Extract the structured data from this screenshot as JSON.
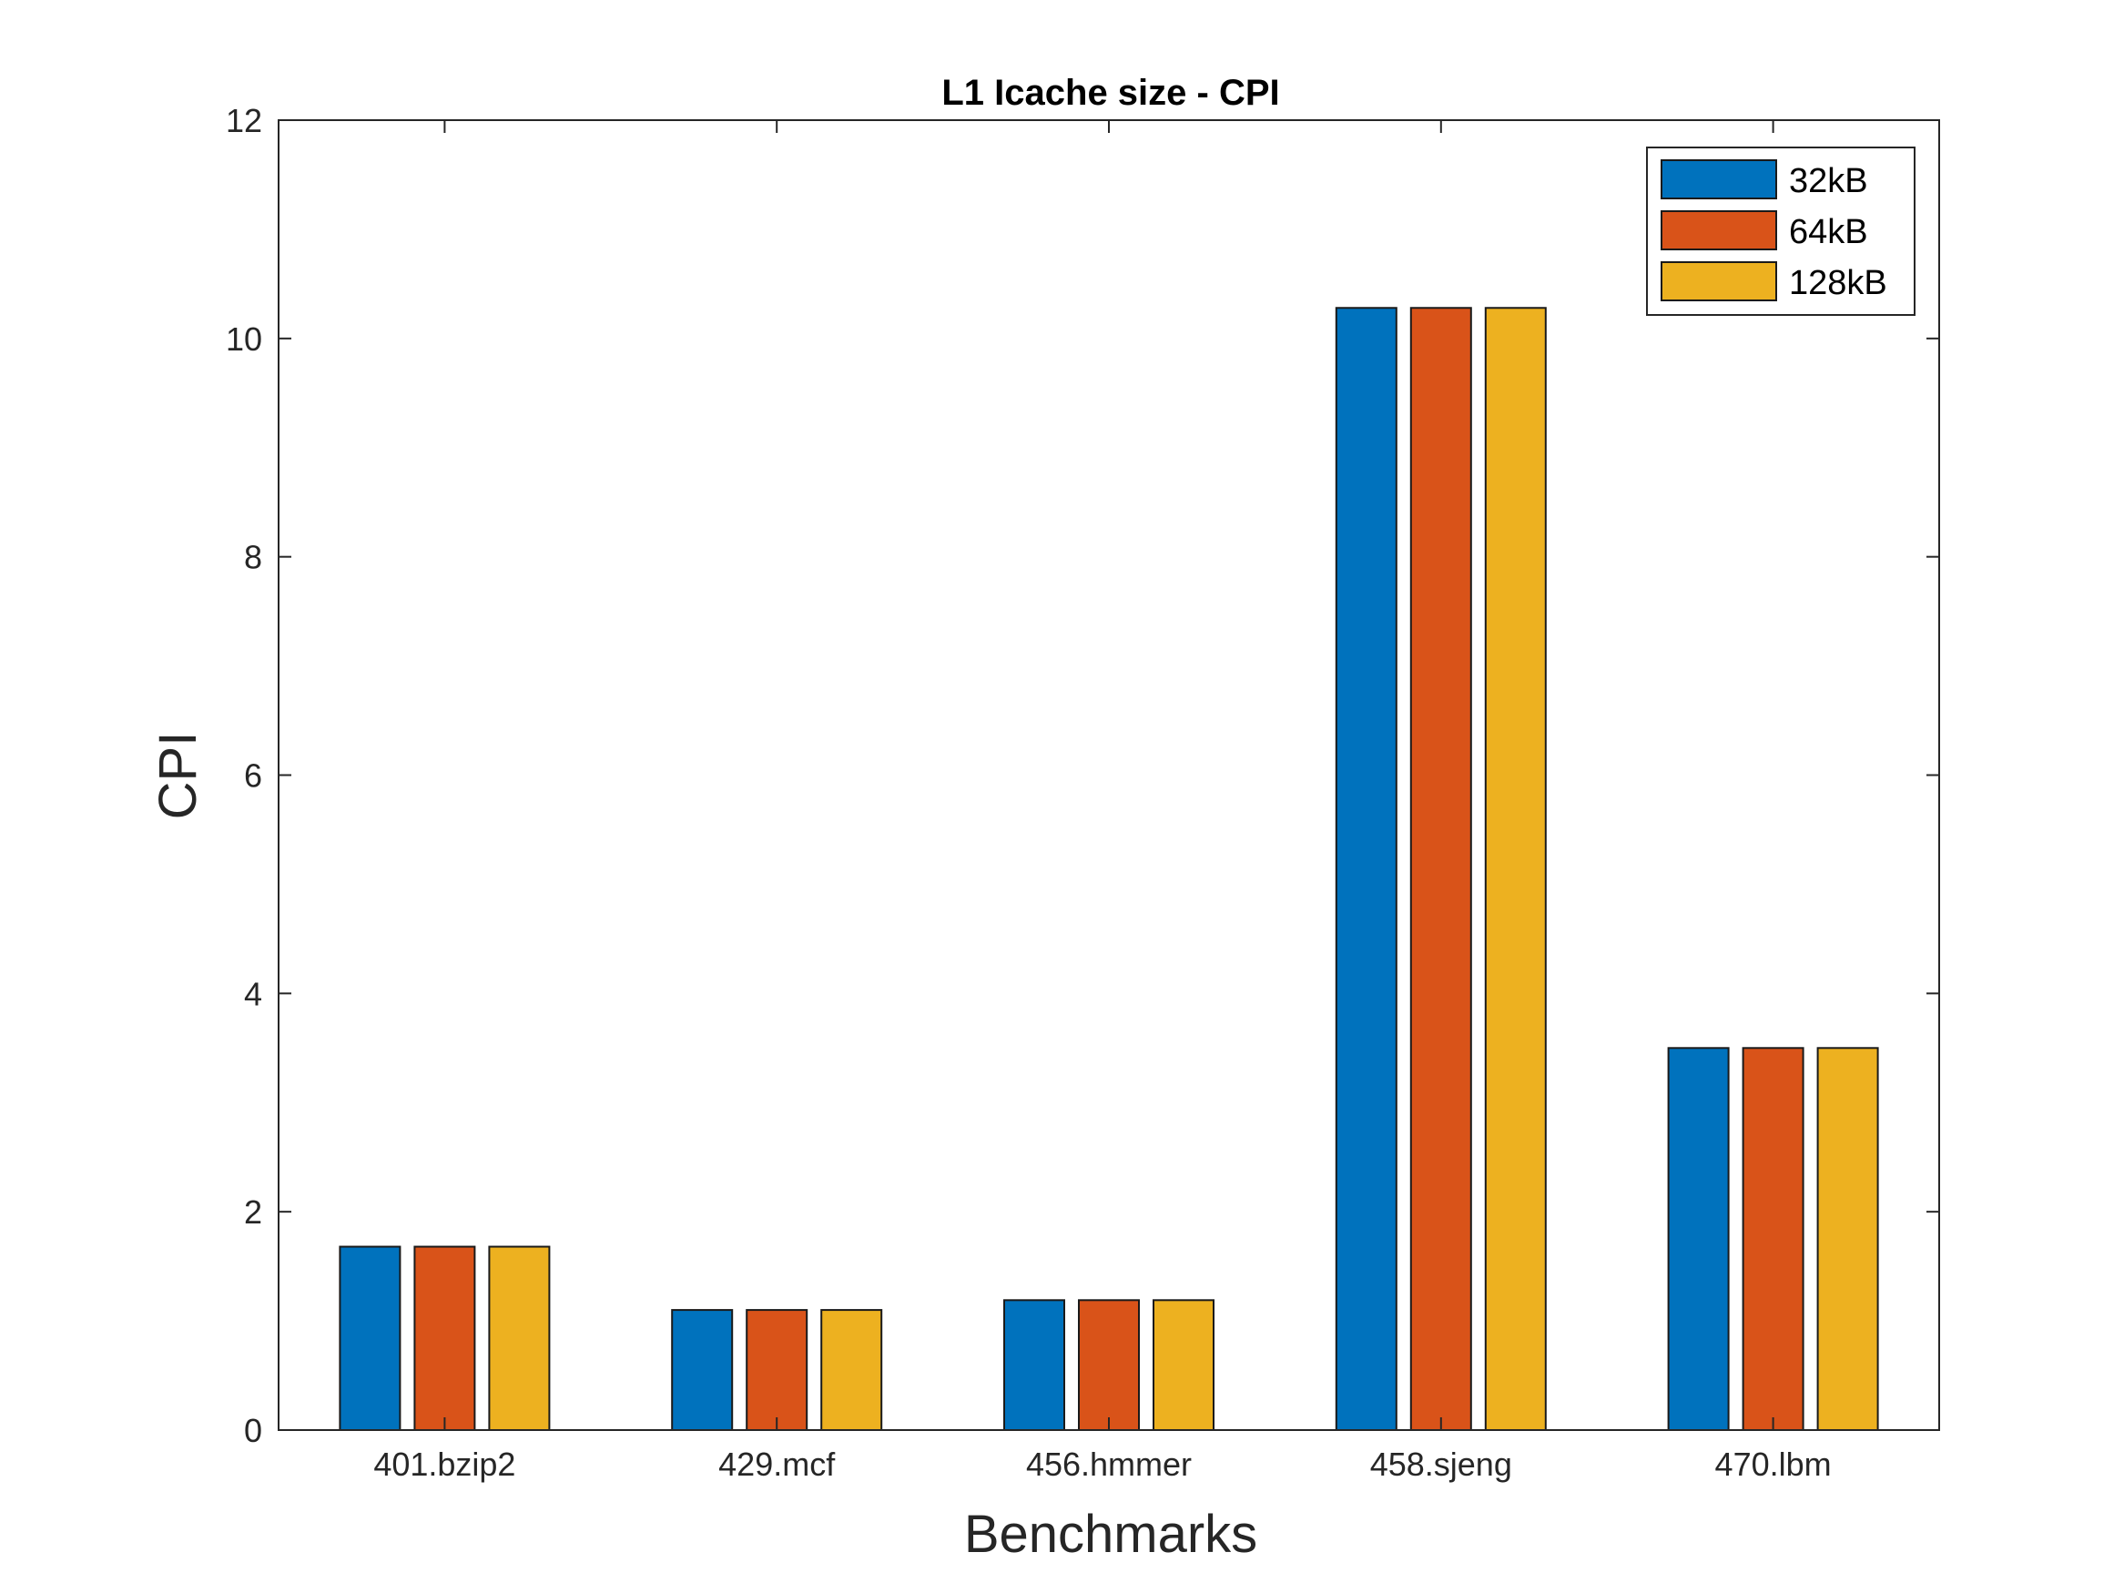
{
  "chart_data": {
    "type": "bar",
    "title": "L1 Icache size - CPI",
    "xlabel": "Benchmarks",
    "ylabel": "CPI",
    "categories": [
      "401.bzip2",
      "429.mcf",
      "456.hmmer",
      "458.sjeng",
      "470.lbm"
    ],
    "series": [
      {
        "name": "32kB",
        "color": "#0072BD",
        "values": [
          1.68,
          1.1,
          1.19,
          10.28,
          3.5
        ]
      },
      {
        "name": "64kB",
        "color": "#D95319",
        "values": [
          1.68,
          1.1,
          1.19,
          10.28,
          3.5
        ]
      },
      {
        "name": "128kB",
        "color": "#EDB120",
        "values": [
          1.68,
          1.1,
          1.19,
          10.28,
          3.5
        ]
      }
    ],
    "ylim": [
      0,
      12
    ],
    "yticks": [
      "0",
      "2",
      "4",
      "6",
      "8",
      "10",
      "12"
    ],
    "grid": false,
    "legend_position": "top-right"
  }
}
